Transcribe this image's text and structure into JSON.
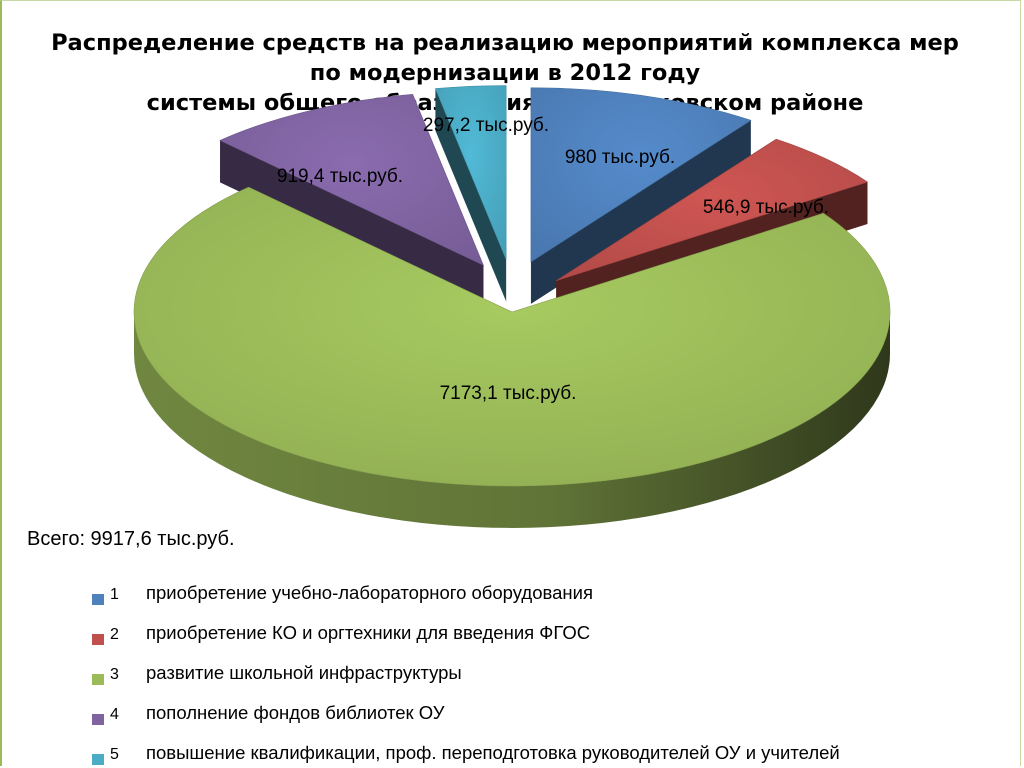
{
  "title": {
    "line1": "Распределение средств на реализацию мероприятий комплекса мер",
    "line2": "по модернизации в 2012 году",
    "line3": "системы общего образования в Третьяковском районе"
  },
  "total_text": "Всего: 9917,6 тыс.руб.",
  "chart_data": {
    "type": "pie",
    "variant": "3d-exploded",
    "total": 9917.6,
    "unit": "тыс.руб.",
    "slices": [
      {
        "category": "1",
        "value": 980,
        "label": "980 тыс.руб.",
        "legend": "приобретение учебно-лабораторного оборудования",
        "color": "#4f81bd"
      },
      {
        "category": "2",
        "value": 546.9,
        "label": "546,9 тыс.руб.",
        "legend": "приобретение КО и оргтехники для введения ФГОС",
        "color": "#c0504d"
      },
      {
        "category": "3",
        "value": 7173.1,
        "label": "7173,1 тыс.руб.",
        "legend": "развитие школьной инфраструктуры",
        "color": "#9bbb59"
      },
      {
        "category": "4",
        "value": 919.4,
        "label": "919,4 тыс.руб.",
        "legend": "пополнение фондов библиотек ОУ",
        "color": "#8064a2"
      },
      {
        "category": "5",
        "value": 297.2,
        "label": "297,2 тыс.руб.",
        "legend": "повышение квалификации, проф. переподготовка руководителей ОУ и учителей",
        "color": "#4bacc6"
      }
    ],
    "legend_position": "bottom"
  }
}
